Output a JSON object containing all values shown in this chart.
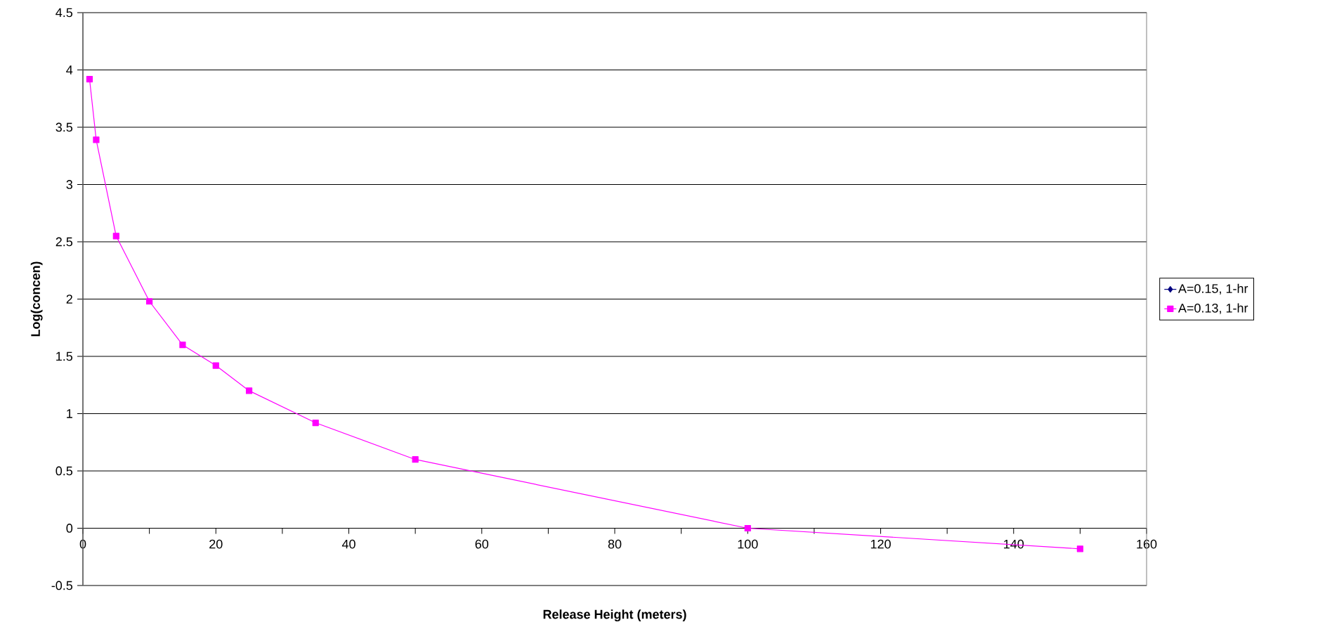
{
  "chart_data": {
    "type": "line",
    "xlabel": "Release Height (meters)",
    "ylabel": "Log(concen)",
    "x": [
      1,
      2,
      5,
      10,
      15,
      20,
      25,
      35,
      50,
      100,
      150
    ],
    "series": [
      {
        "name": "A=0.15, 1-hr",
        "color": "#000080",
        "marker": "diamond",
        "values": [
          null,
          null,
          null,
          null,
          null,
          null,
          null,
          null,
          null,
          null,
          null
        ]
      },
      {
        "name": "A=0.13, 1-hr",
        "color": "#ff00ff",
        "marker": "square",
        "values": [
          3.92,
          3.39,
          2.55,
          1.98,
          1.6,
          1.42,
          1.2,
          0.92,
          0.6,
          0.0,
          -0.18
        ]
      }
    ],
    "xlim": [
      0,
      160
    ],
    "xticks": [
      0,
      20,
      40,
      60,
      80,
      100,
      120,
      140,
      160
    ],
    "ylim": [
      -0.5,
      4.5
    ],
    "yticks": [
      -0.5,
      0,
      0.5,
      1,
      1.5,
      2,
      2.5,
      3,
      3.5,
      4,
      4.5
    ],
    "grid": "y",
    "legend": "right",
    "line_style": "solid"
  }
}
